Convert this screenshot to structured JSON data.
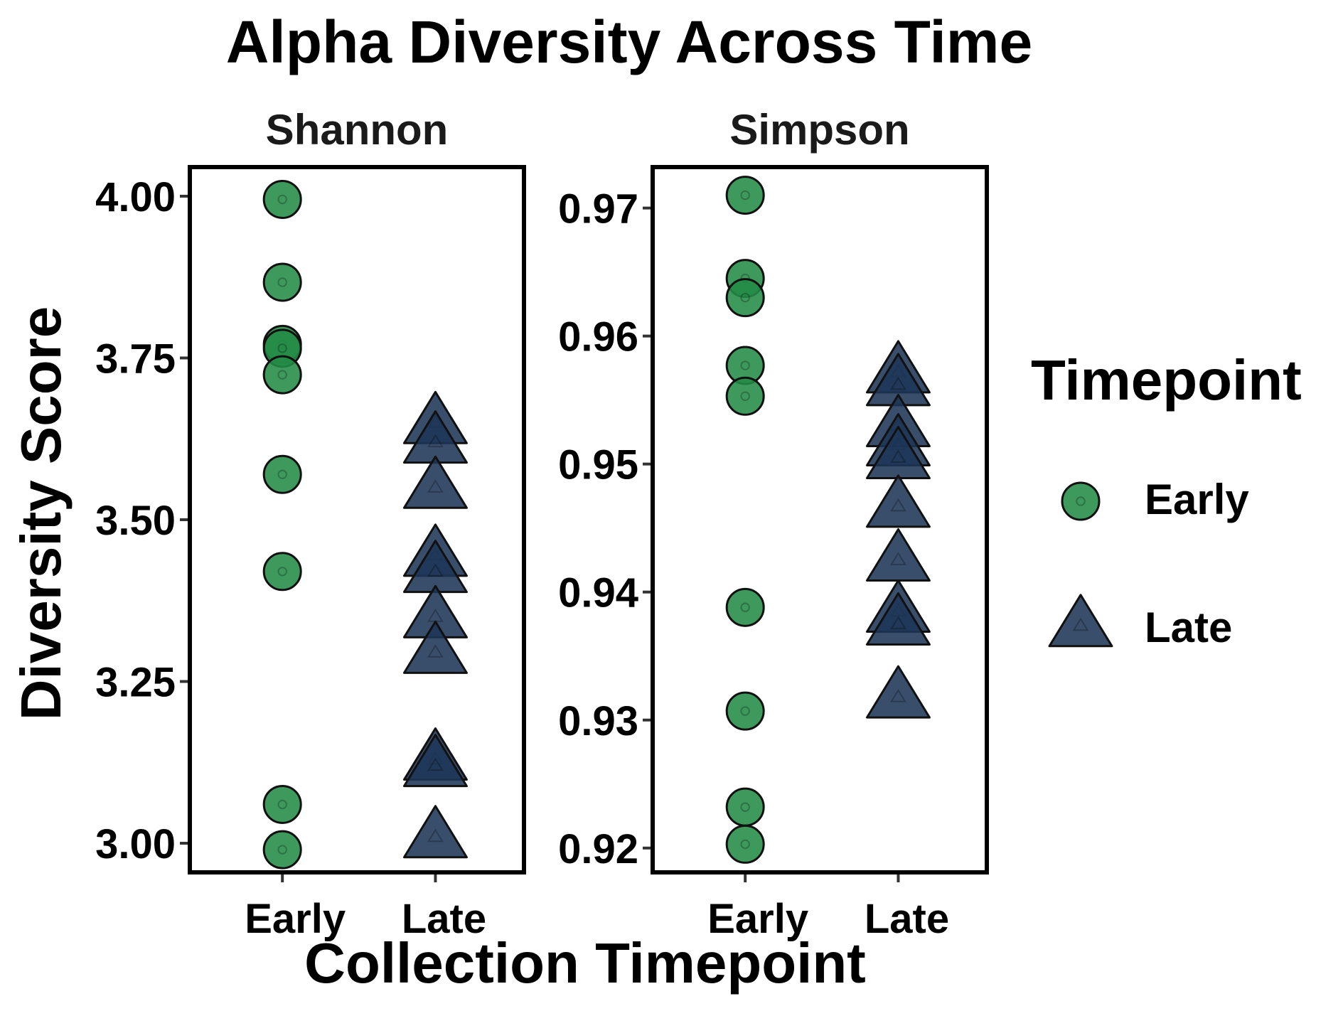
{
  "chart_data": {
    "type": "scatter",
    "title": "Alpha Diversity Across Time",
    "xlabel": "Collection Timepoint",
    "ylabel": "Diversity Score",
    "categories": [
      "Early",
      "Late"
    ],
    "legend": {
      "title": "Timepoint",
      "placement": "right",
      "entries": [
        {
          "label": "Early",
          "shape": "circle",
          "color": "#238b45"
        },
        {
          "label": "Late",
          "shape": "triangle",
          "color": "#1c3557"
        }
      ]
    },
    "panels": [
      {
        "strip": "Shannon",
        "ylim": [
          2.955,
          4.045
        ],
        "yticks": [
          3.0,
          3.25,
          3.5,
          3.75,
          4.0
        ],
        "ytick_labels": [
          "3.00",
          "3.25",
          "3.50",
          "3.75",
          "4.00"
        ],
        "series": [
          {
            "name": "Early",
            "values": [
              3.995,
              3.867,
              3.771,
              3.765,
              3.724,
              3.57,
              3.42,
              3.06,
              2.99
            ]
          },
          {
            "name": "Late",
            "values": [
              3.65,
              3.62,
              3.55,
              3.445,
              3.42,
              3.35,
              3.295,
              3.13,
              3.12,
              3.01
            ]
          }
        ]
      },
      {
        "strip": "Simpson",
        "ylim": [
          0.9181,
          0.9732
        ],
        "yticks": [
          0.92,
          0.93,
          0.94,
          0.95,
          0.96,
          0.97
        ],
        "ytick_labels": [
          "0.92",
          "0.93",
          "0.94",
          "0.95",
          "0.96",
          "0.97"
        ],
        "series": [
          {
            "name": "Early",
            "values": [
              0.971,
              0.9645,
              0.963,
              0.9577,
              0.9553,
              0.9388,
              0.9307,
              0.9232,
              0.9203
            ]
          },
          {
            "name": "Late",
            "values": [
              0.9572,
              0.9562,
              0.953,
              0.9515,
              0.9505,
              0.9467,
              0.9425,
              0.9385,
              0.9375,
              0.9318
            ]
          }
        ]
      }
    ]
  }
}
